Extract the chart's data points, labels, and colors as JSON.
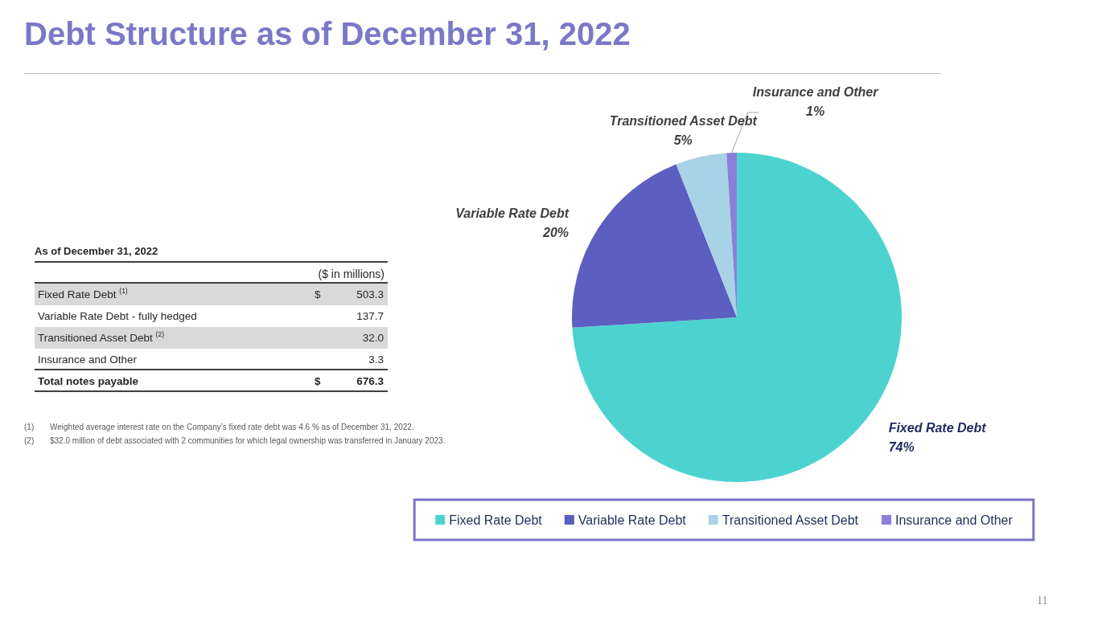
{
  "chart_data": {
    "type": "pie",
    "title": "Debt Structure as of December 31, 2022",
    "categories": [
      "Fixed Rate Debt",
      "Variable Rate Debt",
      "Transitioned Asset Debt",
      "Insurance and Other"
    ],
    "values": [
      74,
      20,
      5,
      1
    ],
    "colors": [
      "#4dd3cf",
      "#5c5ec0",
      "#a8d2e6",
      "#8a80d8"
    ],
    "value_labels": [
      "74%",
      "20%",
      "5%",
      "1%"
    ],
    "legend": "bottom",
    "annotations": [
      "As of December 31, 2022",
      "($ in millions)",
      "Fixed Rate Debt $^{(1)}$",
      "$",
      "503.3",
      "Variable Rate Debt - fully hedged",
      "137.7",
      "Transitioned Asset Debt $^{(2)}$",
      "32.0",
      "Insurance and Other",
      "3.3",
      "Total notes payable",
      "$",
      "676.3",
      "(1) Weighted average interest rate on the Company’s fixed rate debt was 4.6 % as of December 31, 2022.",
      "(2) $32.0 million of debt associated with 2 communities for which legal ownership was transferred in January 2023.",
      "11"
    ]
  }
}
